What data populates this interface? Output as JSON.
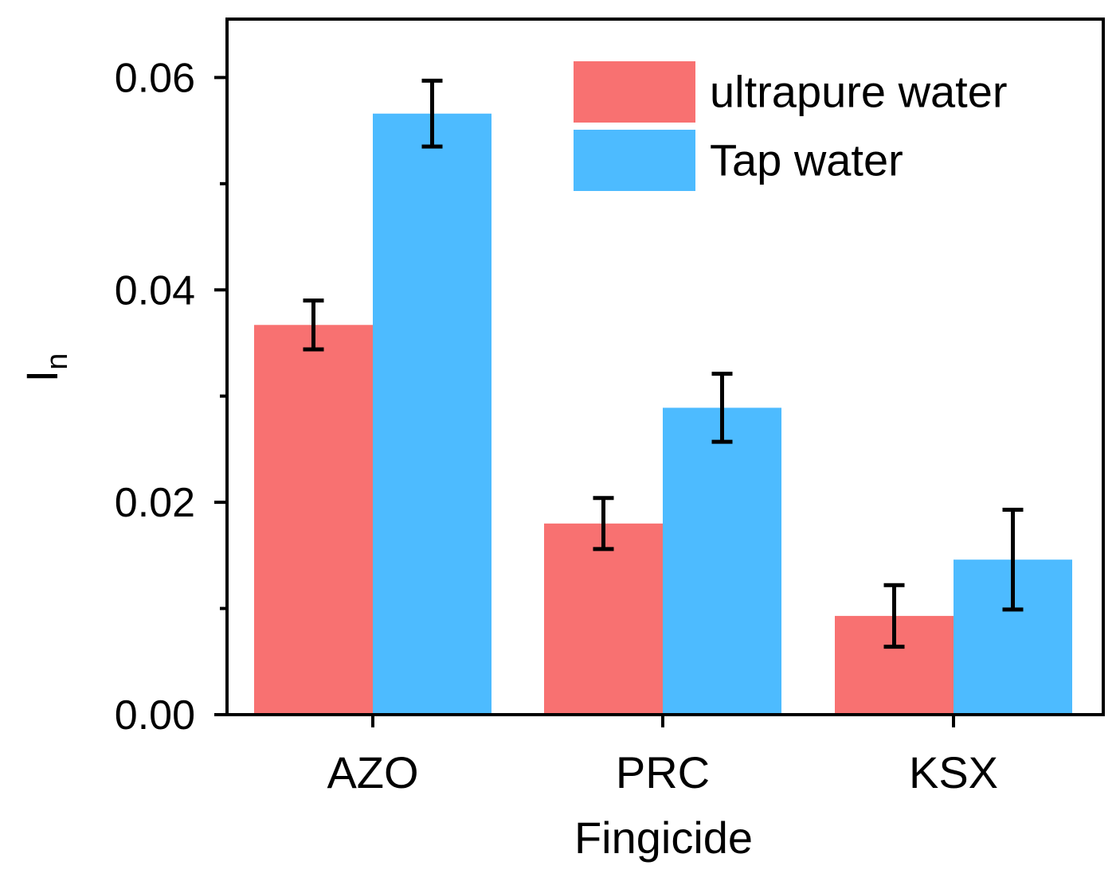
{
  "chart_data": {
    "type": "bar",
    "title": "",
    "xlabel": "Fingicide",
    "ylabel": {
      "main": "I",
      "sub": "n"
    },
    "categories": [
      "AZO",
      "PRC",
      "KSX"
    ],
    "series": [
      {
        "name": "ultrapure water",
        "color": "#F87171",
        "values": [
          0.0367,
          0.018,
          0.0093
        ],
        "errors": [
          0.0023,
          0.0024,
          0.0029
        ]
      },
      {
        "name": "Tap water",
        "color": "#4DBBFF",
        "values": [
          0.0566,
          0.0289,
          0.0146
        ],
        "errors": [
          0.0031,
          0.0032,
          0.0047
        ]
      }
    ],
    "ylim": [
      0,
      0.0655
    ],
    "yticks": [
      0.0,
      0.02,
      0.04,
      0.06
    ],
    "ytick_labels": [
      "0.00",
      "0.02",
      "0.04",
      "0.06"
    ],
    "yminor_ticks": [
      0.01,
      0.03,
      0.05
    ],
    "grid": false,
    "legend_position": "top-right",
    "error_bars": true
  }
}
